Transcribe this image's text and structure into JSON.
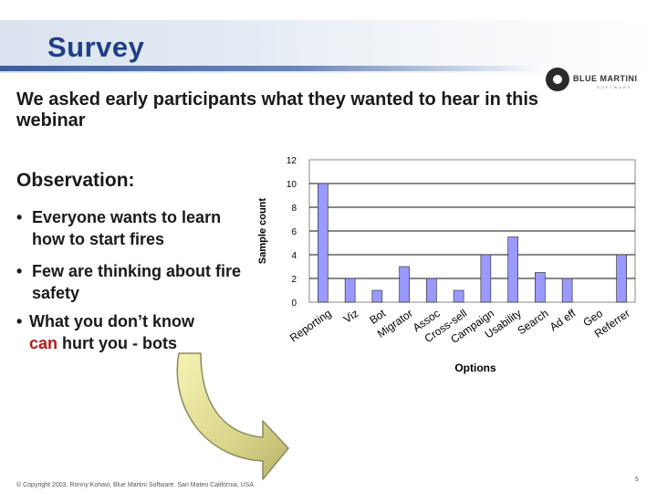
{
  "title": "Survey",
  "subtitle": "We asked early participants what they wanted to hear in this webinar",
  "logo": {
    "name": "BLUE MARTINI",
    "tagline": "SOFTWARE"
  },
  "observation": {
    "heading": "Observation:",
    "bullet_glyph": "•",
    "bullets": [
      "Everyone wants to learn how to start fires",
      "Few are thinking about fire safety"
    ],
    "bullet3_prefix": "What you don’t know",
    "bullet3_highlight": "can",
    "bullet3_suffix": "hurt you -  bots",
    "highlight_color": "#b11a1a"
  },
  "footer": "© Copyright 2003. Ronny Kohavi, Blue Martini Software. San Mateo California, USA",
  "page_number": "5",
  "chart_data": {
    "type": "bar",
    "categories": [
      "Reporting",
      "Viz",
      "Bot",
      "Migrator",
      "Assoc",
      "Cross-sell",
      "Campaign",
      "Usability",
      "Search",
      "Ad eff",
      "Geo",
      "Referrer"
    ],
    "values": [
      10,
      2,
      1,
      3,
      2,
      1,
      4,
      5.5,
      2.5,
      2,
      0,
      4
    ],
    "xlabel": "Options",
    "ylabel": "Sample count",
    "ylim": [
      0,
      12
    ],
    "yticks": [
      0,
      2,
      4,
      6,
      8,
      10,
      12
    ],
    "grid": true,
    "legend": "none",
    "bar_color": "#9999ff",
    "bar_edge": "#222222"
  }
}
